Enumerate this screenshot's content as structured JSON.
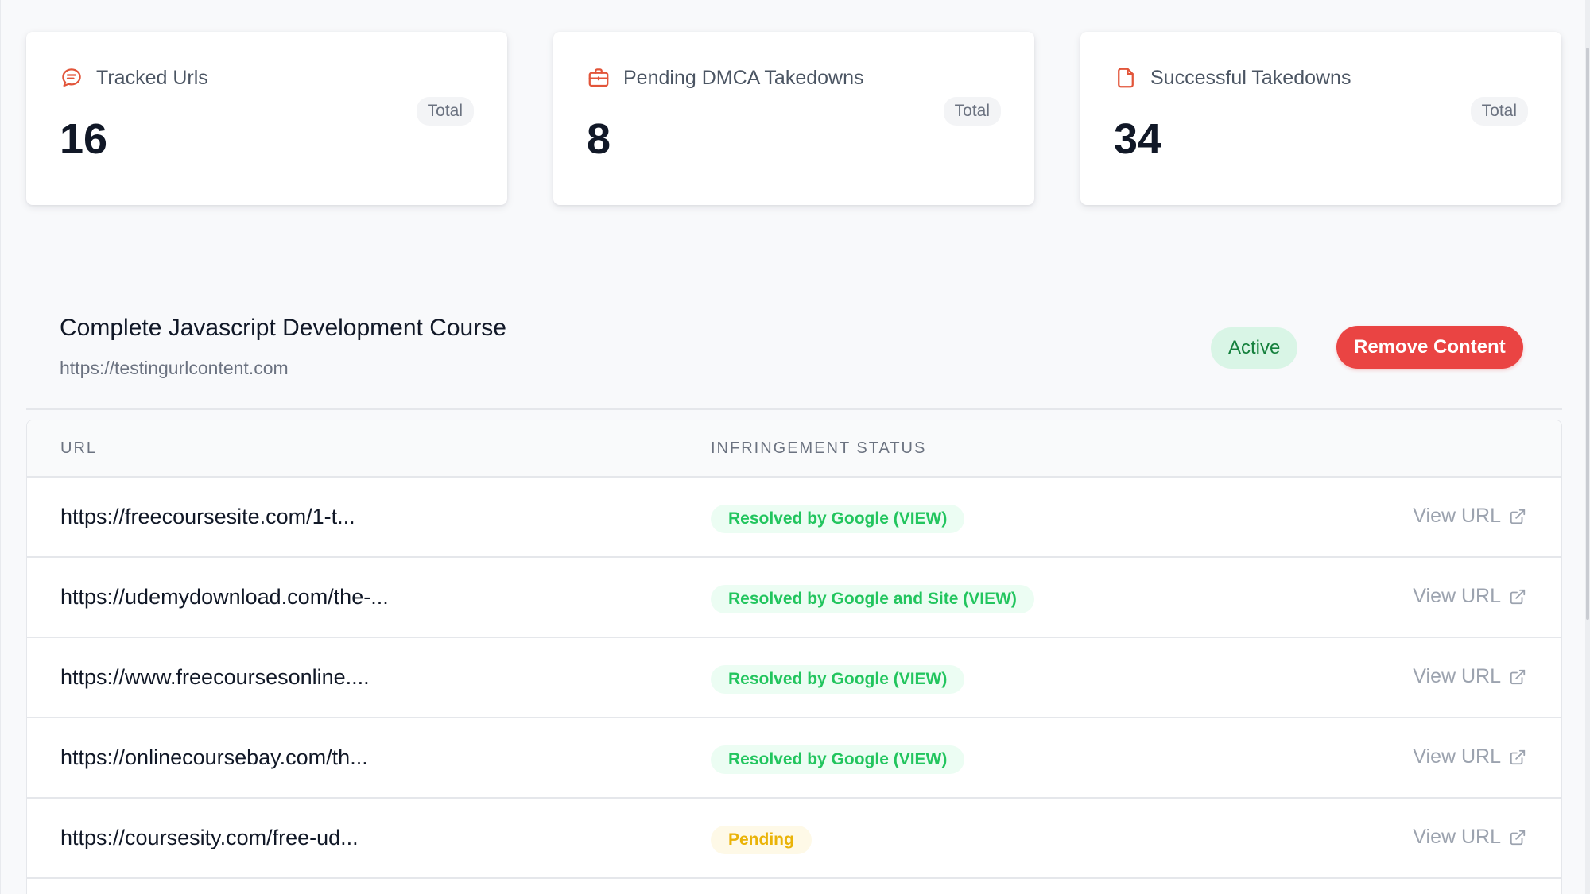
{
  "stats": [
    {
      "icon": "chat-bubble-icon",
      "title": "Tracked Urls",
      "badge": "Total",
      "value": "16",
      "color": "#e2553a"
    },
    {
      "icon": "briefcase-icon",
      "title": "Pending DMCA Takedowns",
      "badge": "Total",
      "value": "8",
      "color": "#e2553a"
    },
    {
      "icon": "document-icon",
      "title": "Successful Takedowns",
      "badge": "Total",
      "value": "34",
      "color": "#e2553a"
    }
  ],
  "course": {
    "title": "Complete Javascript Development Course",
    "url": "https://testingurlcontent.com",
    "status": "Active",
    "remove_label": "Remove Content"
  },
  "table": {
    "headers": {
      "url": "URL",
      "status": "INFRINGEMENT STATUS"
    },
    "rows": [
      {
        "url": "https://freecoursesite.com/1-t...",
        "status": "Resolved by Google (VIEW)",
        "status_type": "resolved",
        "action": "View URL"
      },
      {
        "url": "https://udemydownload.com/the-...",
        "status": "Resolved by Google and Site (VIEW)",
        "status_type": "resolved",
        "action": "View URL"
      },
      {
        "url": "https://www.freecoursesonline....",
        "status": "Resolved by Google (VIEW)",
        "status_type": "resolved",
        "action": "View URL"
      },
      {
        "url": "https://onlinecoursebay.com/th...",
        "status": "Resolved by Google (VIEW)",
        "status_type": "resolved",
        "action": "View URL"
      },
      {
        "url": "https://coursesity.com/free-ud...",
        "status": "Pending",
        "status_type": "pending",
        "action": "View URL"
      }
    ]
  },
  "colors": {
    "accent_red": "#ea4443",
    "active_green": "#15803d",
    "resolved_green": "#22c55e",
    "pending_yellow": "#eab308"
  }
}
